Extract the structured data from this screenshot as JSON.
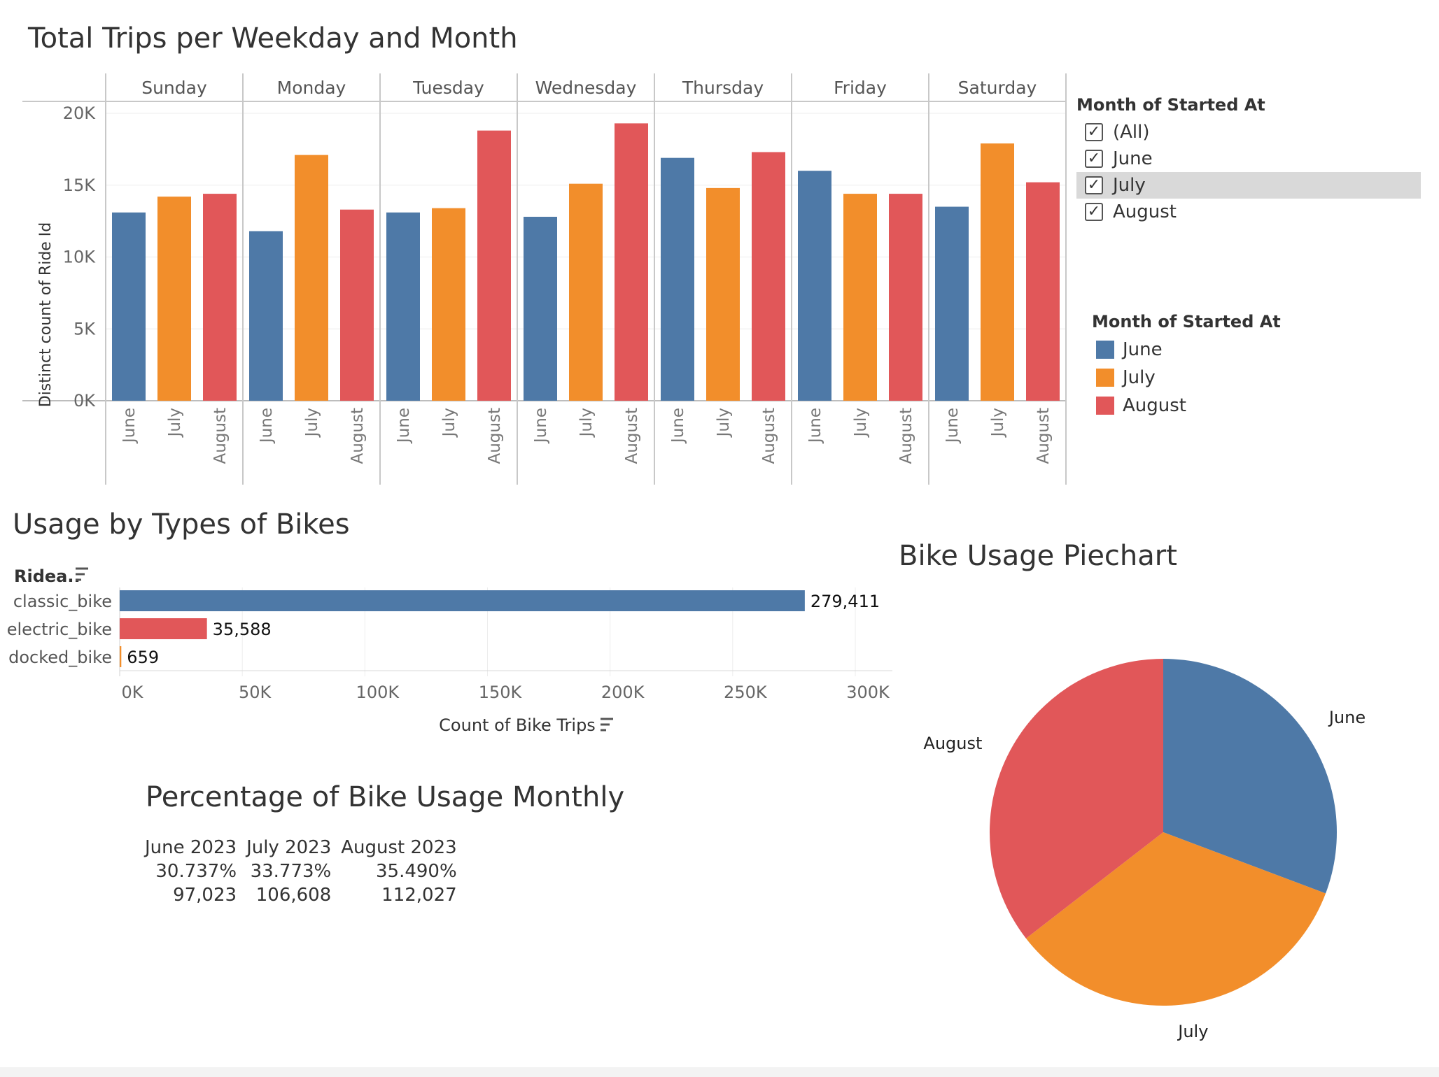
{
  "colors": {
    "june": "#4e79a7",
    "july": "#f28e2b",
    "august": "#e15759",
    "grid": "#ededed",
    "axis": "#c8c8c8"
  },
  "weekday_chart": {
    "title": "Total Trips per Weekday and Month",
    "ylabel": "Distinct count of Ride Id",
    "yticks": [
      "20K",
      "15K",
      "10K",
      "5K",
      "0K"
    ],
    "weekdays": [
      "Sunday",
      "Monday",
      "Tuesday",
      "Wednesday",
      "Thursday",
      "Friday",
      "Saturday"
    ],
    "months": [
      "June",
      "July",
      "August"
    ]
  },
  "filter": {
    "title": "Month of Started At",
    "items": [
      {
        "label": "(All)",
        "checked": true,
        "selected": false
      },
      {
        "label": "June",
        "checked": true,
        "selected": false
      },
      {
        "label": "July",
        "checked": true,
        "selected": true
      },
      {
        "label": "August",
        "checked": true,
        "selected": false
      }
    ]
  },
  "legend": {
    "title": "Month of Started At",
    "items": [
      {
        "label": "June",
        "color": "#4e79a7"
      },
      {
        "label": "July",
        "color": "#f28e2b"
      },
      {
        "label": "August",
        "color": "#e15759"
      }
    ]
  },
  "bike_types": {
    "title": "Usage by Types of Bikes",
    "dim_header": "Ridea..",
    "xlabel": "Count of Bike Trips",
    "xticks": [
      "0K",
      "50K",
      "100K",
      "150K",
      "200K",
      "250K",
      "300K"
    ]
  },
  "percentage": {
    "title": "Percentage of Bike Usage Monthly",
    "headers": [
      "June 2023",
      "July 2023",
      "August 2023"
    ],
    "percents": [
      "30.737%",
      "33.773%",
      "35.490%"
    ],
    "counts": [
      "97,023",
      "106,608",
      "112,027"
    ]
  },
  "piechart": {
    "title": "Bike Usage Piechart"
  },
  "chart_data": [
    {
      "type": "bar",
      "title": "Total Trips per Weekday and Month",
      "ylabel": "Distinct count of Ride Id",
      "ylim": [
        0,
        20000
      ],
      "categories": [
        "Sunday",
        "Monday",
        "Tuesday",
        "Wednesday",
        "Thursday",
        "Friday",
        "Saturday"
      ],
      "series": [
        {
          "name": "June",
          "values": [
            13100,
            11800,
            13100,
            12800,
            16900,
            16000,
            13500
          ]
        },
        {
          "name": "July",
          "values": [
            14200,
            17100,
            13400,
            15100,
            14800,
            14400,
            17900
          ]
        },
        {
          "name": "August",
          "values": [
            14400,
            13300,
            18800,
            19300,
            17300,
            14400,
            15200
          ]
        }
      ]
    },
    {
      "type": "bar",
      "title": "Usage by Types of Bikes",
      "xlabel": "Count of Bike Trips",
      "xlim": [
        0,
        300000
      ],
      "categories": [
        "classic_bike",
        "electric_bike",
        "docked_bike"
      ],
      "values": [
        279411,
        35588,
        659
      ],
      "labels": [
        "279,411",
        "35,588",
        "659"
      ],
      "colors": [
        "#4e79a7",
        "#e15759",
        "#f28e2b"
      ]
    },
    {
      "type": "pie",
      "title": "Bike Usage Piechart",
      "categories": [
        "June",
        "July",
        "August"
      ],
      "values": [
        97023,
        106608,
        112027
      ],
      "colors": [
        "#4e79a7",
        "#f28e2b",
        "#e15759"
      ]
    }
  ]
}
